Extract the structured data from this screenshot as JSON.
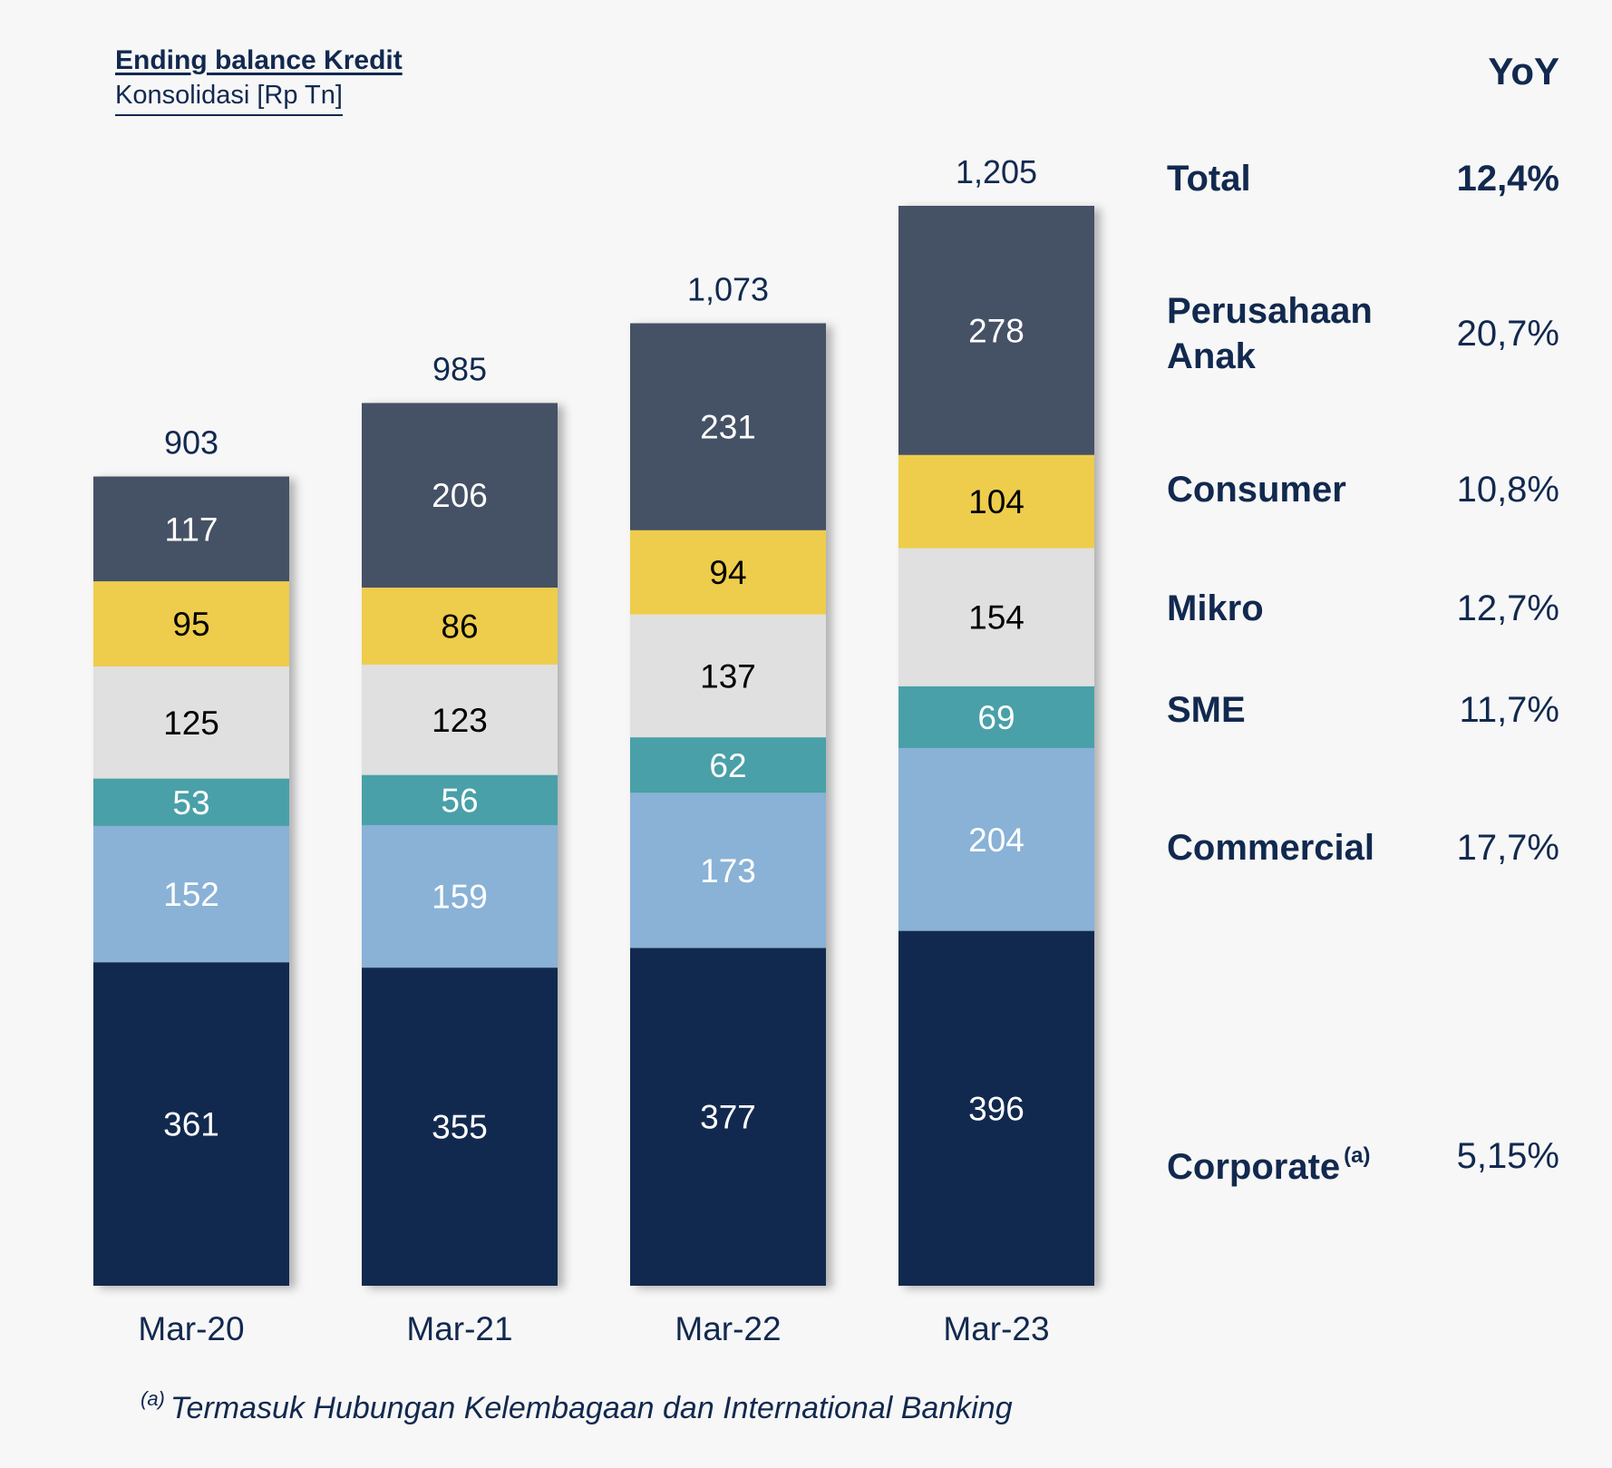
{
  "chart_data": {
    "type": "bar",
    "stacked": true,
    "title": "Ending balance Kredit",
    "subtitle": "Konsolidasi [Rp Tn]",
    "categories": [
      "Mar-20",
      "Mar-21",
      "Mar-22",
      "Mar-23"
    ],
    "totals": [
      "903",
      "985",
      "1,073",
      "1,205"
    ],
    "series": [
      {
        "name": "Corporate",
        "color": "#12294f",
        "label_color": "#ffffff",
        "values": [
          361,
          355,
          377,
          396
        ]
      },
      {
        "name": "Commercial",
        "color": "#89b2d6",
        "label_color": "#ffffff",
        "values": [
          152,
          159,
          173,
          204
        ]
      },
      {
        "name": "SME",
        "color": "#4aa0a8",
        "label_color": "#ffffff",
        "values": [
          53,
          56,
          62,
          69
        ]
      },
      {
        "name": "Mikro",
        "color": "#e0e0e0",
        "label_color": "#000000",
        "values": [
          125,
          123,
          137,
          154
        ]
      },
      {
        "name": "Consumer",
        "color": "#edcd4b",
        "label_color": "#000000",
        "values": [
          95,
          86,
          94,
          104
        ]
      },
      {
        "name": "Perusahaan Anak",
        "color": "#455165",
        "label_color": "#ffffff",
        "values": [
          117,
          206,
          231,
          278
        ]
      }
    ],
    "ylim": [
      0,
      1205
    ]
  },
  "legend": {
    "header": "YoY",
    "items": [
      {
        "label": "Total",
        "value": "12,4%"
      },
      {
        "label": "Perusahaan\nAnak",
        "value": "20,7%"
      },
      {
        "label": "Consumer",
        "value": "10,8%"
      },
      {
        "label": "Mikro",
        "value": "12,7%"
      },
      {
        "label": "SME",
        "value": "11,7%"
      },
      {
        "label": "Commercial",
        "value": "17,7%"
      },
      {
        "label": "Corporate",
        "sup": "(a)",
        "value": "5,15%"
      }
    ]
  },
  "footnote": {
    "marker": "(a)",
    "text": "Termasuk Hubungan Kelembagaan dan International Banking"
  }
}
